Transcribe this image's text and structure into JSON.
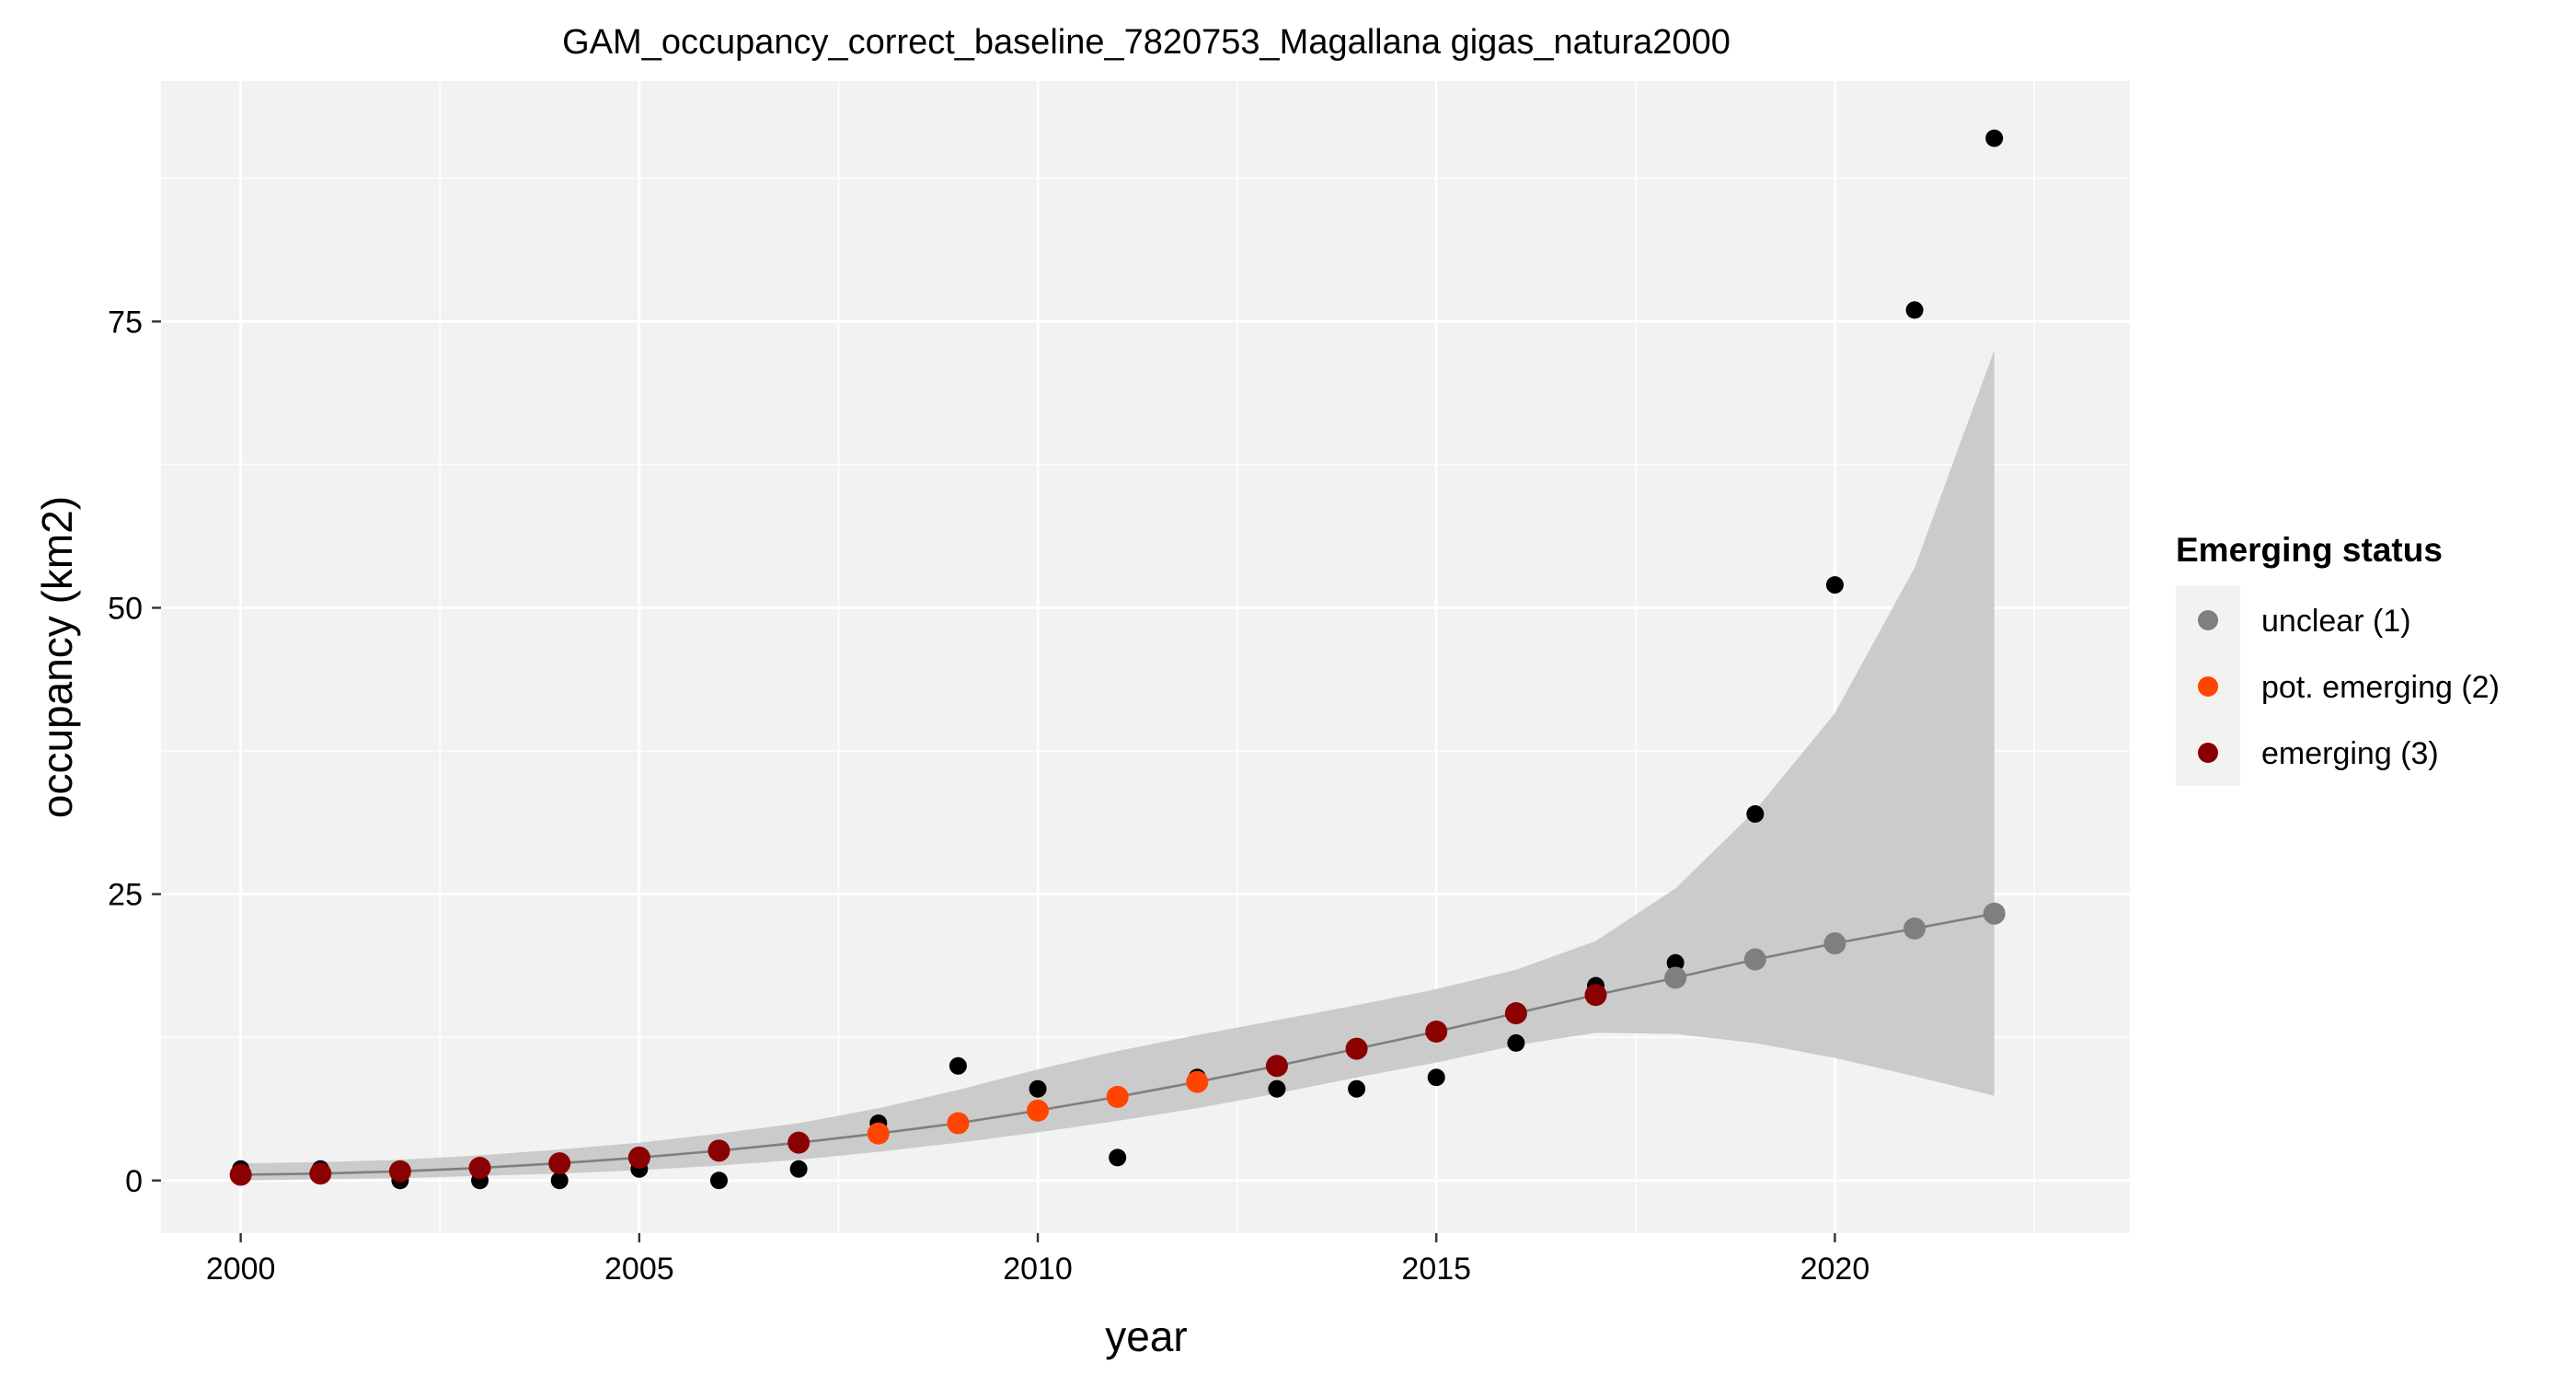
{
  "chart_data": {
    "type": "scatter",
    "title": "GAM_occupancy_correct_baseline_7820753_Magallana gigas_natura2000",
    "xlabel": "year",
    "ylabel": "occupancy (km2)",
    "xlim": [
      1999,
      2023.7
    ],
    "ylim": [
      -4.6,
      96.0
    ],
    "x_ticks": [
      2000,
      2005,
      2010,
      2015,
      2020
    ],
    "y_ticks": [
      0,
      25,
      50,
      75
    ],
    "grid": true,
    "legend_position": "right",
    "legend": {
      "title": "Emerging status",
      "entries": [
        {
          "label": "unclear (1)",
          "color": "#7f7f7f"
        },
        {
          "label": "pot. emerging (2)",
          "color": "#ff4500"
        },
        {
          "label": "emerging (3)",
          "color": "#8b0000"
        }
      ]
    },
    "observed": {
      "color": "#000000",
      "x": [
        2000,
        2001,
        2002,
        2003,
        2004,
        2005,
        2006,
        2007,
        2008,
        2009,
        2010,
        2011,
        2012,
        2013,
        2014,
        2015,
        2016,
        2017,
        2018,
        2019,
        2020,
        2021,
        2022
      ],
      "y": [
        1,
        1,
        0,
        0,
        0,
        1,
        0,
        1,
        5,
        10,
        8,
        2,
        9,
        8,
        8,
        9,
        12,
        17,
        19,
        32,
        52,
        76,
        91
      ]
    },
    "fit": {
      "line_color": "#7f7f7f",
      "ribbon_color": "#c8c8c8",
      "x": [
        2000,
        2001,
        2002,
        2003,
        2004,
        2005,
        2006,
        2007,
        2008,
        2009,
        2010,
        2011,
        2012,
        2013,
        2014,
        2015,
        2016,
        2017,
        2018,
        2019,
        2020,
        2021,
        2022
      ],
      "y": [
        0.5,
        0.6,
        0.8,
        1.1,
        1.5,
        2.0,
        2.6,
        3.3,
        4.1,
        5.0,
        6.1,
        7.3,
        8.6,
        10.0,
        11.5,
        13.0,
        14.6,
        16.2,
        17.7,
        19.3,
        20.7,
        22.0,
        23.3
      ],
      "lower": [
        0.0,
        0.1,
        0.2,
        0.4,
        0.6,
        0.9,
        1.3,
        1.8,
        2.5,
        3.3,
        4.2,
        5.2,
        6.3,
        7.6,
        9.0,
        10.3,
        11.8,
        12.9,
        12.8,
        12.0,
        10.7,
        9.1,
        7.4
      ],
      "upper": [
        1.5,
        1.6,
        1.8,
        2.2,
        2.7,
        3.3,
        4.1,
        5.0,
        6.3,
        7.9,
        9.7,
        11.3,
        12.7,
        14.0,
        15.3,
        16.7,
        18.4,
        20.9,
        25.5,
        32.3,
        40.8,
        53.5,
        72.5
      ],
      "status": [
        3,
        3,
        3,
        3,
        3,
        3,
        3,
        3,
        2,
        2,
        2,
        2,
        2,
        3,
        3,
        3,
        3,
        3,
        1,
        1,
        1,
        1,
        1
      ]
    }
  }
}
